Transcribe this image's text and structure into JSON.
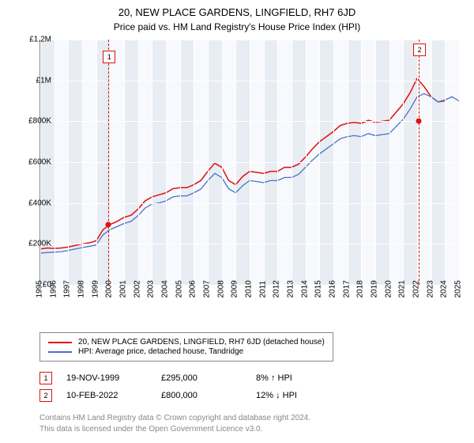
{
  "title": "20, NEW PLACE GARDENS, LINGFIELD, RH7 6JD",
  "subtitle": "Price paid vs. HM Land Registry's House Price Index (HPI)",
  "chart": {
    "type": "line",
    "background_color": "#e8ecf3",
    "grid_color": "#ffffff",
    "axis_color": "#888888",
    "ylim": [
      0,
      1200000
    ],
    "ytick_step": 200000,
    "ytick_labels": [
      "£0",
      "£200K",
      "£400K",
      "£600K",
      "£800K",
      "£1M",
      "£1.2M"
    ],
    "xlim": [
      1995,
      2025
    ],
    "xtick_step": 1,
    "xtick_labels": [
      "1995",
      "1996",
      "1997",
      "1998",
      "1999",
      "2000",
      "2001",
      "2002",
      "2003",
      "2004",
      "2005",
      "2006",
      "2007",
      "2008",
      "2009",
      "2010",
      "2011",
      "2012",
      "2013",
      "2014",
      "2015",
      "2016",
      "2017",
      "2018",
      "2019",
      "2020",
      "2021",
      "2022",
      "2023",
      "2024",
      "2025"
    ],
    "series": [
      {
        "name": "20, NEW PLACE GARDENS, LINGFIELD, RH7 6JD (detached house)",
        "color": "#e01010",
        "width": 1.5,
        "points": [
          [
            1995,
            175000
          ],
          [
            1995.5,
            180000
          ],
          [
            1996,
            178000
          ],
          [
            1996.5,
            180000
          ],
          [
            1997,
            185000
          ],
          [
            1997.5,
            192000
          ],
          [
            1998,
            200000
          ],
          [
            1998.5,
            205000
          ],
          [
            1999,
            215000
          ],
          [
            1999.5,
            270000
          ],
          [
            2000,
            295000
          ],
          [
            2000.5,
            310000
          ],
          [
            2001,
            330000
          ],
          [
            2001.5,
            340000
          ],
          [
            2002,
            370000
          ],
          [
            2002.5,
            410000
          ],
          [
            2003,
            430000
          ],
          [
            2003.5,
            440000
          ],
          [
            2004,
            450000
          ],
          [
            2004.5,
            470000
          ],
          [
            2005,
            475000
          ],
          [
            2005.5,
            475000
          ],
          [
            2006,
            490000
          ],
          [
            2006.5,
            510000
          ],
          [
            2007,
            555000
          ],
          [
            2007.5,
            595000
          ],
          [
            2008,
            575000
          ],
          [
            2008.5,
            510000
          ],
          [
            2009,
            490000
          ],
          [
            2009.5,
            530000
          ],
          [
            2010,
            555000
          ],
          [
            2010.5,
            550000
          ],
          [
            2011,
            545000
          ],
          [
            2011.5,
            555000
          ],
          [
            2012,
            555000
          ],
          [
            2012.5,
            575000
          ],
          [
            2013,
            575000
          ],
          [
            2013.5,
            590000
          ],
          [
            2014,
            625000
          ],
          [
            2014.5,
            665000
          ],
          [
            2015,
            700000
          ],
          [
            2015.5,
            725000
          ],
          [
            2016,
            750000
          ],
          [
            2016.5,
            780000
          ],
          [
            2017,
            790000
          ],
          [
            2017.5,
            795000
          ],
          [
            2018,
            790000
          ],
          [
            2018.5,
            805000
          ],
          [
            2019,
            795000
          ],
          [
            2019.5,
            800000
          ],
          [
            2020,
            805000
          ],
          [
            2020.5,
            845000
          ],
          [
            2021,
            885000
          ],
          [
            2021.5,
            940000
          ],
          [
            2022,
            1010000
          ],
          [
            2022.5,
            970000
          ],
          [
            2023,
            920000
          ],
          [
            2023.5,
            895000
          ],
          [
            2024,
            900000
          ]
        ]
      },
      {
        "name": "HPI: Average price, detached house, Tandridge",
        "color": "#4a72c4",
        "width": 1.3,
        "points": [
          [
            1995,
            155000
          ],
          [
            1995.5,
            158000
          ],
          [
            1996,
            160000
          ],
          [
            1996.5,
            162000
          ],
          [
            1997,
            168000
          ],
          [
            1997.5,
            175000
          ],
          [
            1998,
            182000
          ],
          [
            1998.5,
            188000
          ],
          [
            1999,
            195000
          ],
          [
            1999.5,
            245000
          ],
          [
            2000,
            270000
          ],
          [
            2000.5,
            285000
          ],
          [
            2001,
            300000
          ],
          [
            2001.5,
            310000
          ],
          [
            2002,
            338000
          ],
          [
            2002.5,
            375000
          ],
          [
            2003,
            395000
          ],
          [
            2003.5,
            400000
          ],
          [
            2004,
            410000
          ],
          [
            2004.5,
            430000
          ],
          [
            2005,
            435000
          ],
          [
            2005.5,
            435000
          ],
          [
            2006,
            450000
          ],
          [
            2006.5,
            468000
          ],
          [
            2007,
            510000
          ],
          [
            2007.5,
            545000
          ],
          [
            2008,
            525000
          ],
          [
            2008.5,
            470000
          ],
          [
            2009,
            450000
          ],
          [
            2009.5,
            485000
          ],
          [
            2010,
            510000
          ],
          [
            2010.5,
            505000
          ],
          [
            2011,
            500000
          ],
          [
            2011.5,
            510000
          ],
          [
            2012,
            510000
          ],
          [
            2012.5,
            525000
          ],
          [
            2013,
            525000
          ],
          [
            2013.5,
            540000
          ],
          [
            2014,
            575000
          ],
          [
            2014.5,
            610000
          ],
          [
            2015,
            640000
          ],
          [
            2015.5,
            665000
          ],
          [
            2016,
            690000
          ],
          [
            2016.5,
            715000
          ],
          [
            2017,
            725000
          ],
          [
            2017.5,
            730000
          ],
          [
            2018,
            725000
          ],
          [
            2018.5,
            740000
          ],
          [
            2019,
            730000
          ],
          [
            2019.5,
            735000
          ],
          [
            2020,
            740000
          ],
          [
            2020.5,
            775000
          ],
          [
            2021,
            810000
          ],
          [
            2021.5,
            860000
          ],
          [
            2022,
            920000
          ],
          [
            2022.5,
            935000
          ],
          [
            2023,
            920000
          ],
          [
            2023.5,
            895000
          ],
          [
            2024,
            905000
          ],
          [
            2024.5,
            920000
          ],
          [
            2025,
            900000
          ]
        ]
      }
    ],
    "markers": [
      {
        "id": "1",
        "x": 1999.88,
        "y": 295000
      },
      {
        "id": "2",
        "x": 2022.12,
        "y": 800000
      }
    ]
  },
  "legend": {
    "items": [
      {
        "color": "#e01010",
        "label": "20, NEW PLACE GARDENS, LINGFIELD, RH7 6JD (detached house)"
      },
      {
        "color": "#4a72c4",
        "label": "HPI: Average price, detached house, Tandridge"
      }
    ]
  },
  "table": {
    "rows": [
      {
        "marker": "1",
        "date": "19-NOV-1999",
        "price": "£295,000",
        "delta": "8% ↑ HPI"
      },
      {
        "marker": "2",
        "date": "10-FEB-2022",
        "price": "£800,000",
        "delta": "12% ↓ HPI"
      }
    ]
  },
  "attribution": {
    "line1": "Contains HM Land Registry data © Crown copyright and database right 2024.",
    "line2": "This data is licensed under the Open Government Licence v3.0."
  }
}
